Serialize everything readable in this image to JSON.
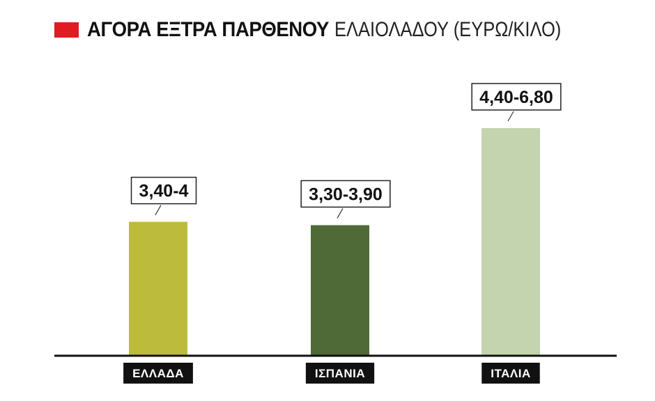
{
  "chart_data": {
    "type": "bar",
    "title_bold": "ΑΓΟΡΑ ΕΞΤΡΑ ΠΑΡΘΕΝΟΥ",
    "title_rest": "ΕΛΑΙΟΛΑΔΟΥ (ΕΥΡΩ/ΚΙΛΟ)",
    "categories": [
      "ΕΛΛΑΔΑ",
      "ΙΣΠΑΝΙΑ",
      "ΙΤΑΛΙΑ"
    ],
    "ranges": [
      [
        3.4,
        4.0
      ],
      [
        3.3,
        3.9
      ],
      [
        4.4,
        6.8
      ]
    ],
    "value_labels": [
      "3,40-4",
      "3,30-3,90",
      "4,40-6,80"
    ],
    "colors": [
      "#bcbb3c",
      "#4f6a36",
      "#c3d4ae"
    ],
    "title_marker_color": "#e01b22",
    "axis": "none",
    "grid": false
  }
}
